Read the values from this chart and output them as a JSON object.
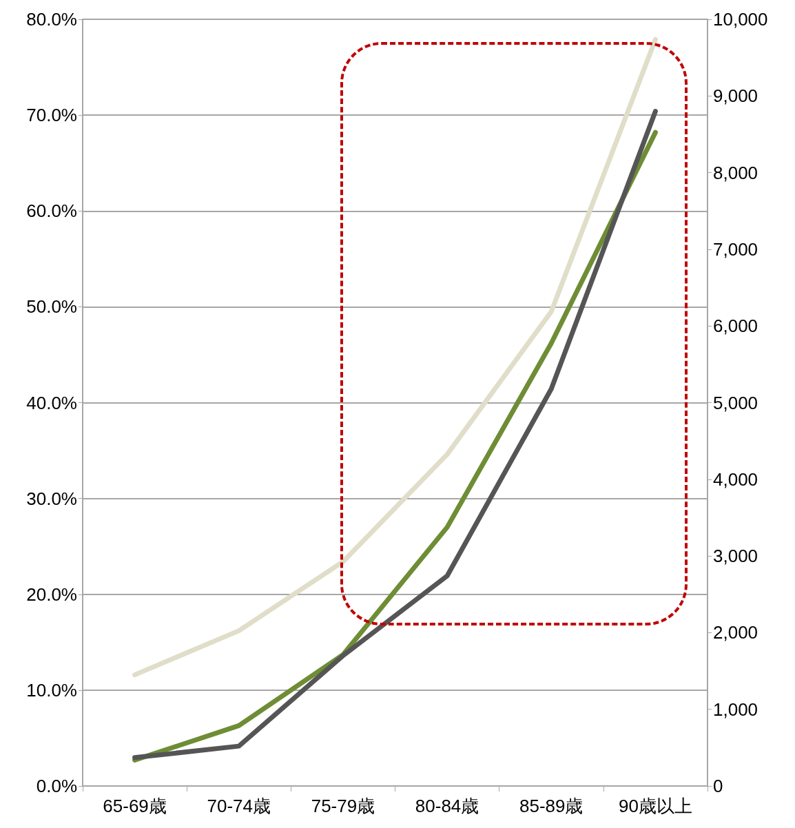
{
  "chart_data": {
    "type": "line",
    "categories": [
      "65-69歳",
      "70-74歳",
      "75-79歳",
      "80-84歳",
      "85-89歳",
      "90歳以上"
    ],
    "series": [
      {
        "color": "#e0ddc9",
        "values": [
          11.6,
          16.2,
          23.4,
          34.6,
          49.5,
          77.9
        ]
      },
      {
        "color": "#6e8d35",
        "values": [
          2.7,
          6.3,
          13.7,
          27.0,
          46.2,
          68.2
        ]
      },
      {
        "color": "#555555",
        "axis": "y2",
        "values": [
          370,
          520,
          1700,
          2740,
          5180,
          8800
        ]
      }
    ],
    "ylim": [
      0,
      80
    ],
    "yticks": [
      {
        "value": 0,
        "label": "0.0%"
      },
      {
        "value": 10,
        "label": "10.0%"
      },
      {
        "value": 20,
        "label": "20.0%"
      },
      {
        "value": 30,
        "label": "30.0%"
      },
      {
        "value": 40,
        "label": "40.0%"
      },
      {
        "value": 50,
        "label": "50.0%"
      },
      {
        "value": 60,
        "label": "60.0%"
      },
      {
        "value": 70,
        "label": "70.0%"
      },
      {
        "value": 80,
        "label": "80.0%"
      }
    ],
    "y2lim": [
      0,
      10000
    ],
    "y2ticks": [
      0,
      {
        "value": 1000,
        "label": "1,000"
      },
      {
        "value": 2000,
        "label": "2,000"
      },
      {
        "value": 3000,
        "label": "3,000"
      },
      {
        "value": 4000,
        "label": "4,000"
      },
      {
        "value": 5000,
        "label": "5,000"
      },
      {
        "value": 6000,
        "label": "6,000"
      },
      {
        "value": 7000,
        "label": "7,000"
      },
      {
        "value": 8000,
        "label": "8,000"
      },
      {
        "value": 9000,
        "label": "9,000"
      },
      {
        "value": 10000,
        "label": "10,000"
      }
    ],
    "grid": "y",
    "marker": "none",
    "line_style": "solid"
  }
}
